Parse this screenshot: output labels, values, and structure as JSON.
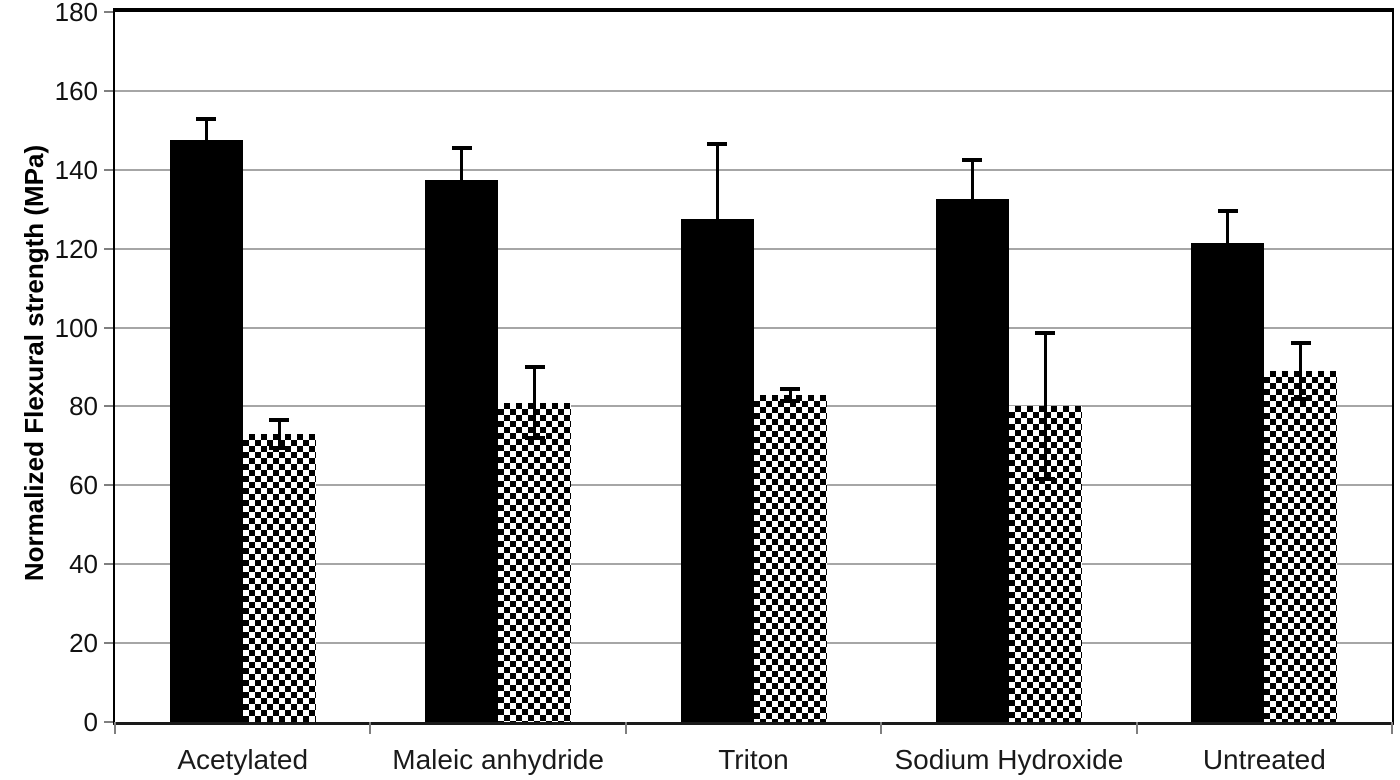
{
  "chart_data": {
    "type": "bar",
    "title": "",
    "xlabel": "",
    "ylabel": "Normalized Flexural strength (MPa)",
    "ylim": [
      0,
      180
    ],
    "ytick_step": 20,
    "ytick_labels": [
      "0",
      "20",
      "40",
      "60",
      "80",
      "100",
      "120",
      "140",
      "160",
      "180"
    ],
    "grid": true,
    "legend_position": "none",
    "error_bars": true,
    "categories": [
      "Acetylated",
      "Maleic anhydride",
      "Triton",
      "Sodium Hydroxide",
      "Untreated"
    ],
    "series": [
      {
        "name": "solid-black",
        "pattern": "solid",
        "color": "#000000",
        "values": [
          147.5,
          137.5,
          127.5,
          132.5,
          121.5
        ],
        "errors": [
          5.5,
          8,
          19,
          10,
          8
        ]
      },
      {
        "name": "checkered",
        "pattern": "checkerboard",
        "color": "#000000",
        "values": [
          73,
          81,
          83,
          80,
          89
        ],
        "errors": [
          3.5,
          9,
          1.5,
          18.5,
          7
        ]
      }
    ]
  },
  "colors": {
    "background": "#ffffff",
    "gridline": "#a6a6a6",
    "axis": "#000000",
    "bar": "#000000",
    "tick": "#7f7f7f",
    "text": "#1a1a1a"
  }
}
